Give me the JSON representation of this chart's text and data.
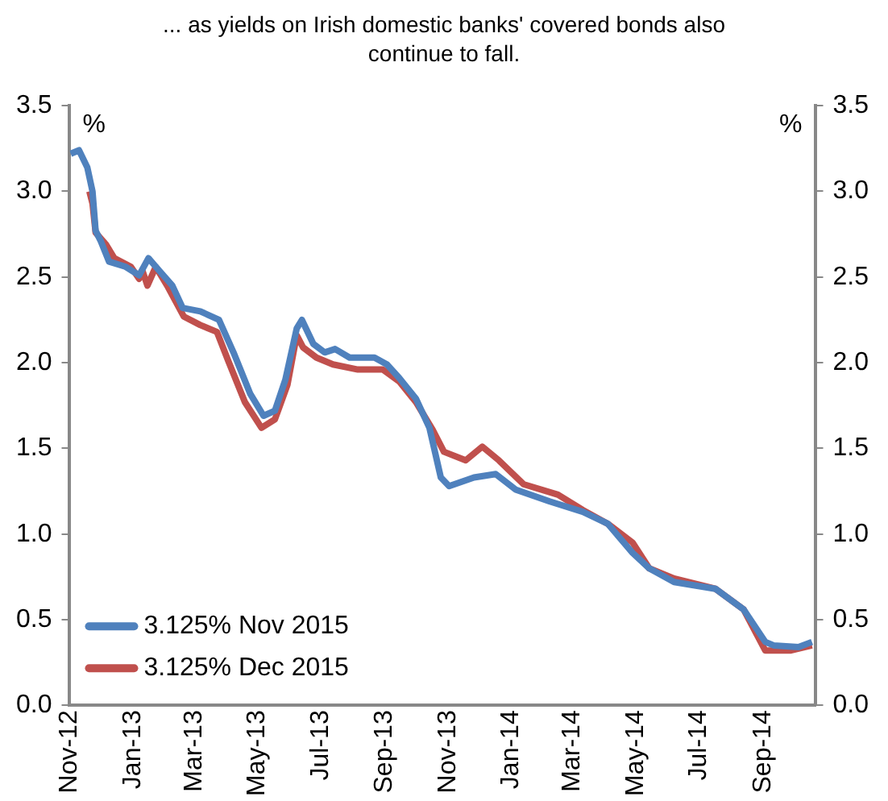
{
  "chart_data": {
    "type": "line",
    "title": "... as yields on Irish domestic banks' covered bonds also continue to fall.",
    "ylabel": "%",
    "y2label": "%",
    "xlim": [
      "2012-11-01",
      "2014-10-21"
    ],
    "xticks": [
      {
        "value": "2012-11-01",
        "label": "Nov-12"
      },
      {
        "value": "2013-01-01",
        "label": "Jan-13"
      },
      {
        "value": "2013-03-01",
        "label": "Mar-13"
      },
      {
        "value": "2013-05-01",
        "label": "May-13"
      },
      {
        "value": "2013-07-01",
        "label": "Jul-13"
      },
      {
        "value": "2013-09-01",
        "label": "Sep-13"
      },
      {
        "value": "2013-11-01",
        "label": "Nov-13"
      },
      {
        "value": "2014-01-01",
        "label": "Jan-14"
      },
      {
        "value": "2014-03-01",
        "label": "Mar-14"
      },
      {
        "value": "2014-05-01",
        "label": "May-14"
      },
      {
        "value": "2014-07-01",
        "label": "Jul-14"
      },
      {
        "value": "2014-09-01",
        "label": "Sep-14"
      }
    ],
    "ylim": [
      0,
      3.5
    ],
    "yticks": [
      {
        "value": 0,
        "label": "0.0"
      },
      {
        "value": 0.5,
        "label": "0.5"
      },
      {
        "value": 1,
        "label": "1.0"
      },
      {
        "value": 1.5,
        "label": "1.5"
      },
      {
        "value": 2,
        "label": "2.0"
      },
      {
        "value": 2.5,
        "label": "2.5"
      },
      {
        "value": 3,
        "label": "3.0"
      },
      {
        "value": 3.5,
        "label": "3.5"
      }
    ],
    "y2lim": [
      0,
      3.5
    ],
    "y2ticks": [
      {
        "value": 0,
        "label": "0.0"
      },
      {
        "value": 0.5,
        "label": "0.5"
      },
      {
        "value": 1,
        "label": "1.0"
      },
      {
        "value": 1.5,
        "label": "1.5"
      },
      {
        "value": 2,
        "label": "2.0"
      },
      {
        "value": 2.5,
        "label": "2.5"
      },
      {
        "value": 3,
        "label": "3.0"
      },
      {
        "value": 3.5,
        "label": "3.5"
      }
    ],
    "grid": false,
    "legend": "bottom left",
    "marker": "none",
    "series": [
      {
        "name": "3.125% Nov 2015",
        "color": "#4f81bd",
        "x": [
          "2012-11-02",
          "2012-11-10",
          "2012-11-18",
          "2012-11-23",
          "2012-11-26",
          "2012-12-01",
          "2012-12-09",
          "2012-12-25",
          "2013-01-07",
          "2013-01-16",
          "2013-01-26",
          "2013-02-08",
          "2013-02-18",
          "2013-03-07",
          "2013-03-25",
          "2013-04-08",
          "2013-04-24",
          "2013-05-07",
          "2013-05-18",
          "2013-05-28",
          "2013-06-08",
          "2013-06-13",
          "2013-06-24",
          "2013-07-05",
          "2013-07-15",
          "2013-07-29",
          "2013-08-22",
          "2013-09-03",
          "2013-09-15",
          "2013-10-01",
          "2013-10-14",
          "2013-10-25",
          "2013-11-02",
          "2013-11-26",
          "2013-12-17",
          "2014-01-05",
          "2014-02-07",
          "2014-03-11",
          "2014-04-04",
          "2014-04-28",
          "2014-05-14",
          "2014-06-07",
          "2014-07-17",
          "2014-08-13",
          "2014-09-03",
          "2014-09-11",
          "2014-10-05",
          "2014-10-18"
        ],
        "values": [
          3.22,
          3.24,
          3.14,
          3.0,
          2.77,
          2.71,
          2.59,
          2.56,
          2.51,
          2.61,
          2.54,
          2.45,
          2.32,
          2.3,
          2.25,
          2.06,
          1.82,
          1.69,
          1.72,
          1.9,
          2.2,
          2.25,
          2.11,
          2.06,
          2.08,
          2.03,
          2.03,
          1.99,
          1.91,
          1.79,
          1.62,
          1.33,
          1.28,
          1.33,
          1.35,
          1.26,
          1.19,
          1.13,
          1.06,
          0.89,
          0.8,
          0.72,
          0.68,
          0.56,
          0.37,
          0.35,
          0.34,
          0.37
        ]
      },
      {
        "name": "3.125% Dec 2015",
        "color": "#c0504d",
        "x": [
          "2012-11-20",
          "2012-11-23",
          "2012-11-26",
          "2012-12-06",
          "2012-12-14",
          "2012-12-30",
          "2013-01-07",
          "2013-01-10",
          "2013-01-15",
          "2013-01-23",
          "2013-02-03",
          "2013-02-19",
          "2013-03-07",
          "2013-03-23",
          "2013-04-03",
          "2013-04-19",
          "2013-05-05",
          "2013-05-18",
          "2013-05-30",
          "2013-06-08",
          "2013-06-14",
          "2013-06-27",
          "2013-07-13",
          "2013-08-06",
          "2013-08-30",
          "2013-09-15",
          "2013-10-01",
          "2013-10-17",
          "2013-10-28",
          "2013-11-18",
          "2013-12-04",
          "2013-12-20",
          "2014-01-13",
          "2014-02-15",
          "2014-03-11",
          "2014-04-04",
          "2014-04-28",
          "2014-05-14",
          "2014-06-07",
          "2014-07-17",
          "2014-08-13",
          "2014-09-03",
          "2014-09-27",
          "2014-10-18"
        ],
        "values": [
          3.0,
          2.93,
          2.76,
          2.69,
          2.61,
          2.56,
          2.49,
          2.54,
          2.45,
          2.56,
          2.45,
          2.27,
          2.22,
          2.18,
          2.01,
          1.77,
          1.62,
          1.67,
          1.87,
          2.16,
          2.09,
          2.03,
          1.99,
          1.96,
          1.96,
          1.89,
          1.77,
          1.61,
          1.48,
          1.43,
          1.51,
          1.43,
          1.29,
          1.23,
          1.14,
          1.06,
          0.95,
          0.8,
          0.74,
          0.68,
          0.56,
          0.32,
          0.32,
          0.35
        ]
      }
    ]
  }
}
